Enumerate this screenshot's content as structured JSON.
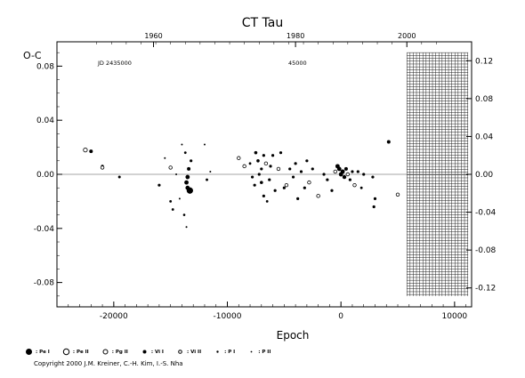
{
  "chart_data": {
    "type": "scatter",
    "title": "CT Tau",
    "xlabel": "Epoch",
    "ylabel": "O-C",
    "xlim": [
      -25000,
      11500
    ],
    "ylim": [
      -0.098,
      0.098
    ],
    "right_ylim": [
      -0.14,
      0.14
    ],
    "x_ticks": [
      -20000,
      -10000,
      0,
      10000
    ],
    "y_ticks": [
      -0.08,
      -0.04,
      0.0,
      0.04,
      0.08
    ],
    "right_y_ticks": [
      -0.12,
      -0.08,
      -0.04,
      0.0,
      0.04,
      0.08,
      0.12
    ],
    "top_year_ticks": [
      {
        "label": "1960",
        "epoch": -16500
      },
      {
        "label": "1980",
        "epoch": -4000
      },
      {
        "label": "2000",
        "epoch": 5800
      }
    ],
    "top_left_note": "JD 2435000",
    "top_mid_note": "45000",
    "grid_region_x": [
      5800,
      11200
    ],
    "grid_region_y": [
      -0.09,
      0.09
    ],
    "legend": [
      {
        "symbol": "Pe-I",
        "label": ": Pe I"
      },
      {
        "symbol": "Pe-II",
        "label": ": Pe II"
      },
      {
        "symbol": "Pg-II",
        "label": ": Pg II"
      },
      {
        "symbol": "Vi-I",
        "label": ": Vi I"
      },
      {
        "symbol": "Vi-II",
        "label": ": Vi II"
      },
      {
        "symbol": "P-I",
        "label": ": P I"
      },
      {
        "symbol": "P-II",
        "label": ": P II"
      }
    ],
    "points": [
      {
        "x": -22500,
        "y": 0.018,
        "t": "open",
        "s": 2.2
      },
      {
        "x": -22000,
        "y": 0.017,
        "t": "filled",
        "s": 2.0
      },
      {
        "x": -21000,
        "y": 0.006,
        "t": "filled",
        "s": 1.6
      },
      {
        "x": -21000,
        "y": 0.005,
        "t": "open",
        "s": 1.8
      },
      {
        "x": -19500,
        "y": -0.002,
        "t": "filled",
        "s": 1.5
      },
      {
        "x": -16000,
        "y": -0.008,
        "t": "filled",
        "s": 1.6
      },
      {
        "x": -15500,
        "y": 0.012,
        "t": "dot",
        "s": 1.0
      },
      {
        "x": -15000,
        "y": -0.02,
        "t": "filled",
        "s": 1.4
      },
      {
        "x": -14800,
        "y": -0.026,
        "t": "filled",
        "s": 1.4
      },
      {
        "x": -15000,
        "y": 0.005,
        "t": "open",
        "s": 1.8
      },
      {
        "x": -14500,
        "y": 0.0,
        "t": "dot",
        "s": 1.0
      },
      {
        "x": -14200,
        "y": -0.018,
        "t": "dot",
        "s": 1.0
      },
      {
        "x": -14000,
        "y": 0.022,
        "t": "dot",
        "s": 1.0
      },
      {
        "x": -13800,
        "y": -0.03,
        "t": "filled",
        "s": 1.3
      },
      {
        "x": -13600,
        "y": -0.006,
        "t": "filled",
        "s": 2.4
      },
      {
        "x": -13500,
        "y": -0.002,
        "t": "filled",
        "s": 2.4
      },
      {
        "x": -13400,
        "y": 0.004,
        "t": "filled",
        "s": 2.0
      },
      {
        "x": -13500,
        "y": -0.01,
        "t": "filled",
        "s": 2.4
      },
      {
        "x": -13300,
        "y": -0.012,
        "t": "filled",
        "s": 3.6
      },
      {
        "x": -13600,
        "y": -0.039,
        "t": "dot",
        "s": 1.0
      },
      {
        "x": -13200,
        "y": 0.01,
        "t": "filled",
        "s": 1.6
      },
      {
        "x": -13700,
        "y": 0.016,
        "t": "filled",
        "s": 1.4
      },
      {
        "x": -12000,
        "y": 0.022,
        "t": "dot",
        "s": 1.0
      },
      {
        "x": -11800,
        "y": -0.004,
        "t": "filled",
        "s": 1.4
      },
      {
        "x": -11500,
        "y": 0.002,
        "t": "dot",
        "s": 1.0
      },
      {
        "x": -9000,
        "y": 0.012,
        "t": "open",
        "s": 1.8
      },
      {
        "x": -8500,
        "y": 0.006,
        "t": "open",
        "s": 1.8
      },
      {
        "x": -8000,
        "y": 0.008,
        "t": "filled",
        "s": 1.4
      },
      {
        "x": -7800,
        "y": -0.002,
        "t": "filled",
        "s": 1.6
      },
      {
        "x": -7600,
        "y": -0.008,
        "t": "filled",
        "s": 1.6
      },
      {
        "x": -7500,
        "y": 0.016,
        "t": "filled",
        "s": 1.8
      },
      {
        "x": -7300,
        "y": 0.01,
        "t": "filled",
        "s": 1.8
      },
      {
        "x": -7200,
        "y": 0.0,
        "t": "filled",
        "s": 1.6
      },
      {
        "x": -7000,
        "y": -0.006,
        "t": "filled",
        "s": 1.8
      },
      {
        "x": -7000,
        "y": 0.004,
        "t": "filled",
        "s": 1.6
      },
      {
        "x": -6800,
        "y": -0.016,
        "t": "filled",
        "s": 1.6
      },
      {
        "x": -6800,
        "y": 0.014,
        "t": "filled",
        "s": 1.6
      },
      {
        "x": -6600,
        "y": 0.008,
        "t": "open",
        "s": 1.8
      },
      {
        "x": -6500,
        "y": -0.02,
        "t": "filled",
        "s": 1.4
      },
      {
        "x": -6300,
        "y": -0.004,
        "t": "filled",
        "s": 1.6
      },
      {
        "x": -6200,
        "y": 0.006,
        "t": "filled",
        "s": 1.6
      },
      {
        "x": -6000,
        "y": 0.014,
        "t": "filled",
        "s": 1.6
      },
      {
        "x": -5800,
        "y": -0.012,
        "t": "filled",
        "s": 1.6
      },
      {
        "x": -5500,
        "y": 0.004,
        "t": "open",
        "s": 1.8
      },
      {
        "x": -5300,
        "y": 0.016,
        "t": "filled",
        "s": 1.6
      },
      {
        "x": -5000,
        "y": -0.01,
        "t": "filled",
        "s": 1.6
      },
      {
        "x": -4800,
        "y": -0.008,
        "t": "open",
        "s": 1.8
      },
      {
        "x": -4500,
        "y": 0.004,
        "t": "filled",
        "s": 1.6
      },
      {
        "x": -4200,
        "y": -0.002,
        "t": "filled",
        "s": 1.6
      },
      {
        "x": -4000,
        "y": 0.008,
        "t": "filled",
        "s": 1.6
      },
      {
        "x": -3800,
        "y": -0.018,
        "t": "filled",
        "s": 1.6
      },
      {
        "x": -3500,
        "y": 0.002,
        "t": "filled",
        "s": 1.6
      },
      {
        "x": -3200,
        "y": -0.01,
        "t": "filled",
        "s": 1.6
      },
      {
        "x": -3000,
        "y": 0.01,
        "t": "filled",
        "s": 1.6
      },
      {
        "x": -2800,
        "y": -0.006,
        "t": "open",
        "s": 1.8
      },
      {
        "x": -2500,
        "y": 0.004,
        "t": "filled",
        "s": 1.6
      },
      {
        "x": -2000,
        "y": -0.016,
        "t": "open",
        "s": 1.8
      },
      {
        "x": -1500,
        "y": 0.0,
        "t": "filled",
        "s": 1.6
      },
      {
        "x": -1200,
        "y": -0.004,
        "t": "filled",
        "s": 1.6
      },
      {
        "x": -800,
        "y": -0.012,
        "t": "filled",
        "s": 1.6
      },
      {
        "x": -500,
        "y": 0.002,
        "t": "open",
        "s": 1.8
      },
      {
        "x": -300,
        "y": 0.006,
        "t": "filled",
        "s": 2.4
      },
      {
        "x": -150,
        "y": 0.004,
        "t": "filled",
        "s": 2.4
      },
      {
        "x": 0,
        "y": 0.0,
        "t": "filled",
        "s": 2.4
      },
      {
        "x": 150,
        "y": 0.002,
        "t": "filled",
        "s": 2.4
      },
      {
        "x": 300,
        "y": -0.002,
        "t": "filled",
        "s": 2.2
      },
      {
        "x": 450,
        "y": 0.004,
        "t": "filled",
        "s": 2.0
      },
      {
        "x": 600,
        "y": 0.0,
        "t": "open",
        "s": 1.8
      },
      {
        "x": 800,
        "y": -0.004,
        "t": "filled",
        "s": 1.6
      },
      {
        "x": 1000,
        "y": 0.002,
        "t": "filled",
        "s": 1.6
      },
      {
        "x": 1200,
        "y": -0.008,
        "t": "open",
        "s": 1.8
      },
      {
        "x": 1500,
        "y": 0.002,
        "t": "filled",
        "s": 1.6
      },
      {
        "x": 1800,
        "y": -0.01,
        "t": "filled",
        "s": 1.4
      },
      {
        "x": 2000,
        "y": 0.0,
        "t": "filled",
        "s": 1.6
      },
      {
        "x": 2800,
        "y": -0.002,
        "t": "filled",
        "s": 1.6
      },
      {
        "x": 2900,
        "y": -0.024,
        "t": "filled",
        "s": 1.6
      },
      {
        "x": 3000,
        "y": -0.018,
        "t": "filled",
        "s": 1.6
      },
      {
        "x": 4200,
        "y": 0.024,
        "t": "filled",
        "s": 2.0
      },
      {
        "x": 5000,
        "y": -0.015,
        "t": "open",
        "s": 1.8
      }
    ]
  }
}
